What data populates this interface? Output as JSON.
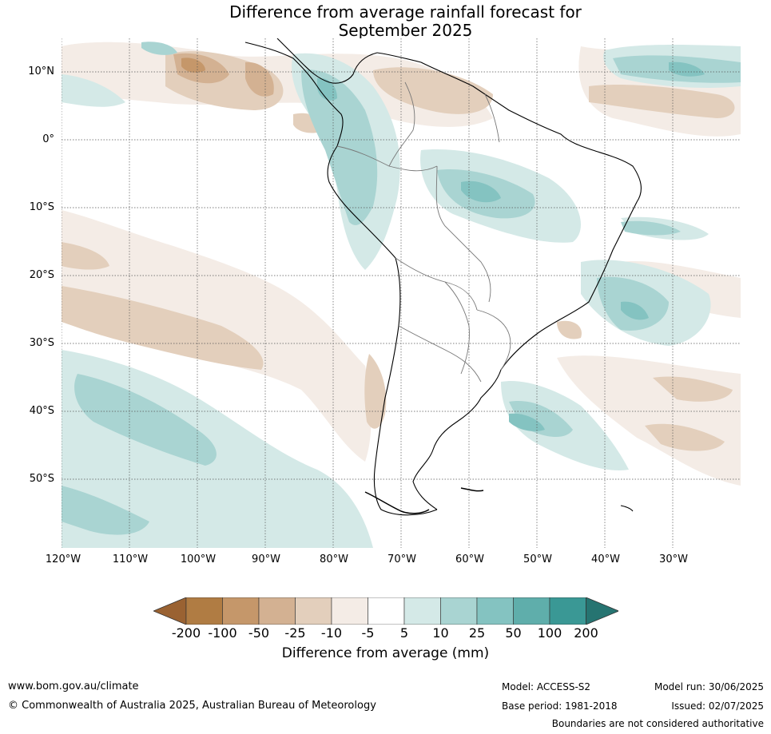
{
  "title_line1": "Difference from average rainfall forecast for",
  "title_line2": "September 2025",
  "map": {
    "lat_labels": [
      "10°N",
      "0°",
      "10°S",
      "20°S",
      "30°S",
      "40°S",
      "50°S"
    ],
    "lon_labels": [
      "120°W",
      "110°W",
      "100°W",
      "90°W",
      "80°W",
      "70°W",
      "60°W",
      "50°W",
      "40°W",
      "30°W"
    ]
  },
  "legend": {
    "title": "Difference from average (mm)",
    "ticks": [
      "-200",
      "-100",
      "-50",
      "-25",
      "-10",
      "-5",
      "5",
      "10",
      "25",
      "50",
      "100",
      "200"
    ],
    "colors": [
      "#9a6232",
      "#b07c43",
      "#c5976a",
      "#d3b192",
      "#e3cfbc",
      "#f4ece6",
      "#ffffff",
      "#d4e9e7",
      "#a9d4d2",
      "#84c3c1",
      "#5faeab",
      "#3a9895",
      "#267471"
    ]
  },
  "footer": {
    "url": "www.bom.gov.au/climate",
    "copyright": "© Commonwealth of Australia 2025, Australian Bureau of Meteorology",
    "model": "Model: ACCESS-S2",
    "base_period": "Base period: 1981-2018",
    "model_run": "Model run: 30/06/2025",
    "issued": "Issued: 02/07/2025",
    "disclaimer": "Boundaries are not considered authoritative"
  }
}
